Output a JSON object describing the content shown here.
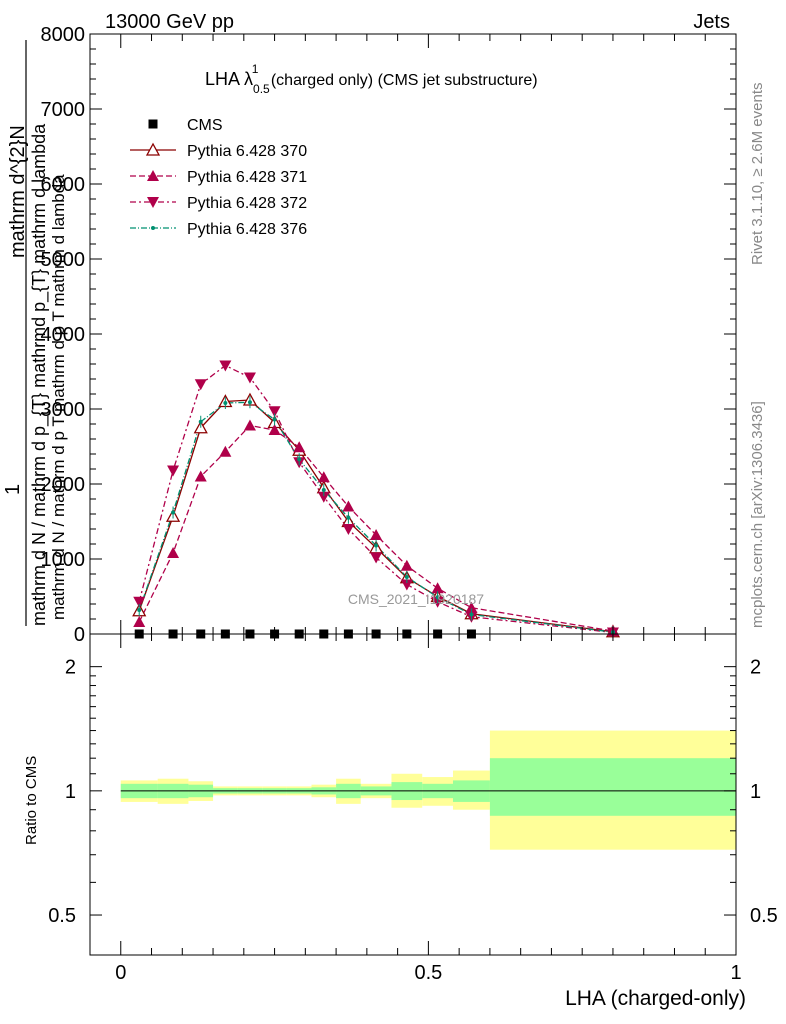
{
  "header": {
    "energy_label": "13000 GeV pp",
    "process_label": "Jets"
  },
  "side_labels": {
    "rivet": "Rivet 3.1.10, ≥ 2.6M events",
    "mcplots": "mcplots.cern.ch [arXiv:1306.3436]"
  },
  "watermark": "CMS_2021_I1920187",
  "chart_data": [
    {
      "type": "line",
      "title_main": "LHA λ",
      "title_sup": "1",
      "title_sub": "0.5",
      "title_rest": " (charged only) (CMS jet substructure)",
      "ylabel_numerator": "mathrm d^{2}N",
      "ylabel_frac_prefix": "1",
      "ylabel_denominator": "mathrm d N / mathrm d p_{T} mathrmd p_{T} mathrm d lambda",
      "ylabel_overprint": "mathrm d N / mathrm d p T mathrm d p T mathrm d lambda",
      "xlim": [
        -0.05,
        1.0
      ],
      "ylim": [
        0,
        8000
      ],
      "ytick_values": [
        0,
        1000,
        2000,
        3000,
        4000,
        5000,
        6000,
        7000,
        8000
      ],
      "ytick_labels": [
        "0",
        "1000",
        "2000",
        "3000",
        "4000",
        "5000",
        "6000",
        "7000",
        "8000"
      ],
      "legend_position": "top-left",
      "cms": {
        "name": "CMS",
        "color": "#000000",
        "x": [
          0.03,
          0.085,
          0.13,
          0.17,
          0.21,
          0.25,
          0.29,
          0.33,
          0.37,
          0.415,
          0.465,
          0.515,
          0.57
        ],
        "y": [
          0,
          0,
          0,
          0,
          0,
          0,
          0,
          0,
          0,
          0,
          0,
          0,
          0
        ]
      },
      "series": [
        {
          "name": "Pythia 6.428 370",
          "color": "#8b0000",
          "dash": "none",
          "marker": "triangle-open",
          "x": [
            0.03,
            0.085,
            0.13,
            0.17,
            0.21,
            0.25,
            0.29,
            0.33,
            0.37,
            0.415,
            0.465,
            0.515,
            0.57,
            0.8
          ],
          "y": [
            310,
            1570,
            2750,
            3100,
            3120,
            2820,
            2450,
            1950,
            1500,
            1150,
            750,
            500,
            270,
            30
          ]
        },
        {
          "name": "Pythia 6.428 371",
          "color": "#b0004a",
          "dash": "6,3",
          "marker": "triangle-up",
          "x": [
            0.03,
            0.085,
            0.13,
            0.17,
            0.21,
            0.25,
            0.29,
            0.33,
            0.37,
            0.415,
            0.465,
            0.515,
            0.57,
            0.8
          ],
          "y": [
            160,
            1080,
            2100,
            2430,
            2780,
            2720,
            2490,
            2090,
            1700,
            1320,
            910,
            610,
            350,
            40
          ]
        },
        {
          "name": "Pythia 6.428 372",
          "color": "#b0004a",
          "dash": "6,3,2,3",
          "marker": "triangle-down",
          "x": [
            0.03,
            0.085,
            0.13,
            0.17,
            0.21,
            0.25,
            0.29,
            0.33,
            0.37,
            0.415,
            0.465,
            0.515,
            0.57,
            0.8
          ],
          "y": [
            430,
            2180,
            3330,
            3580,
            3420,
            2970,
            2290,
            1830,
            1400,
            1020,
            660,
            430,
            230,
            20
          ]
        },
        {
          "name": "Pythia 6.428 376",
          "color": "#009070",
          "dash": "6,2,1,2",
          "marker": "dot",
          "x": [
            0.03,
            0.085,
            0.13,
            0.17,
            0.21,
            0.25,
            0.29,
            0.33,
            0.37,
            0.415,
            0.465,
            0.515,
            0.57,
            0.8
          ],
          "y": [
            320,
            1620,
            2830,
            3080,
            3090,
            2860,
            2330,
            1920,
            1550,
            1180,
            760,
            490,
            260,
            25
          ]
        }
      ]
    },
    {
      "type": "area",
      "ylabel": "Ratio to CMS",
      "xlabel": "LHA (charged-only)",
      "xlim": [
        -0.05,
        1.0
      ],
      "ylim": [
        0.4,
        2.4
      ],
      "yscale": "log",
      "ytick_values": [
        0.5,
        1,
        2
      ],
      "ytick_labels": [
        "0.5",
        "1",
        "2"
      ],
      "xtick_values": [
        0,
        0.5,
        1
      ],
      "xtick_labels": [
        "0",
        "0.5",
        "1"
      ],
      "reference_line": 1.0,
      "bins": [
        {
          "lo": 0.0,
          "hi": 0.06,
          "inner": [
            0.96,
            1.04
          ],
          "outer": [
            0.94,
            1.06
          ]
        },
        {
          "lo": 0.06,
          "hi": 0.11,
          "inner": [
            0.96,
            1.04
          ],
          "outer": [
            0.93,
            1.07
          ]
        },
        {
          "lo": 0.11,
          "hi": 0.15,
          "inner": [
            0.965,
            1.035
          ],
          "outer": [
            0.945,
            1.055
          ]
        },
        {
          "lo": 0.15,
          "hi": 0.19,
          "inner": [
            0.985,
            1.015
          ],
          "outer": [
            0.975,
            1.025
          ]
        },
        {
          "lo": 0.19,
          "hi": 0.23,
          "inner": [
            0.985,
            1.015
          ],
          "outer": [
            0.975,
            1.025
          ]
        },
        {
          "lo": 0.23,
          "hi": 0.27,
          "inner": [
            0.985,
            1.015
          ],
          "outer": [
            0.975,
            1.025
          ]
        },
        {
          "lo": 0.27,
          "hi": 0.31,
          "inner": [
            0.985,
            1.015
          ],
          "outer": [
            0.975,
            1.025
          ]
        },
        {
          "lo": 0.31,
          "hi": 0.35,
          "inner": [
            0.98,
            1.02
          ],
          "outer": [
            0.965,
            1.035
          ]
        },
        {
          "lo": 0.35,
          "hi": 0.39,
          "inner": [
            0.96,
            1.04
          ],
          "outer": [
            0.93,
            1.07
          ]
        },
        {
          "lo": 0.39,
          "hi": 0.44,
          "inner": [
            0.975,
            1.025
          ],
          "outer": [
            0.96,
            1.04
          ]
        },
        {
          "lo": 0.44,
          "hi": 0.49,
          "inner": [
            0.95,
            1.05
          ],
          "outer": [
            0.91,
            1.1
          ]
        },
        {
          "lo": 0.49,
          "hi": 0.54,
          "inner": [
            0.96,
            1.04
          ],
          "outer": [
            0.92,
            1.08
          ]
        },
        {
          "lo": 0.54,
          "hi": 0.6,
          "inner": [
            0.94,
            1.06
          ],
          "outer": [
            0.9,
            1.12
          ]
        },
        {
          "lo": 0.6,
          "hi": 1.0,
          "inner": [
            0.87,
            1.2
          ],
          "outer": [
            0.72,
            1.4
          ]
        }
      ],
      "colors": {
        "inner": "#99ff99",
        "outer": "#ffff99"
      }
    }
  ]
}
